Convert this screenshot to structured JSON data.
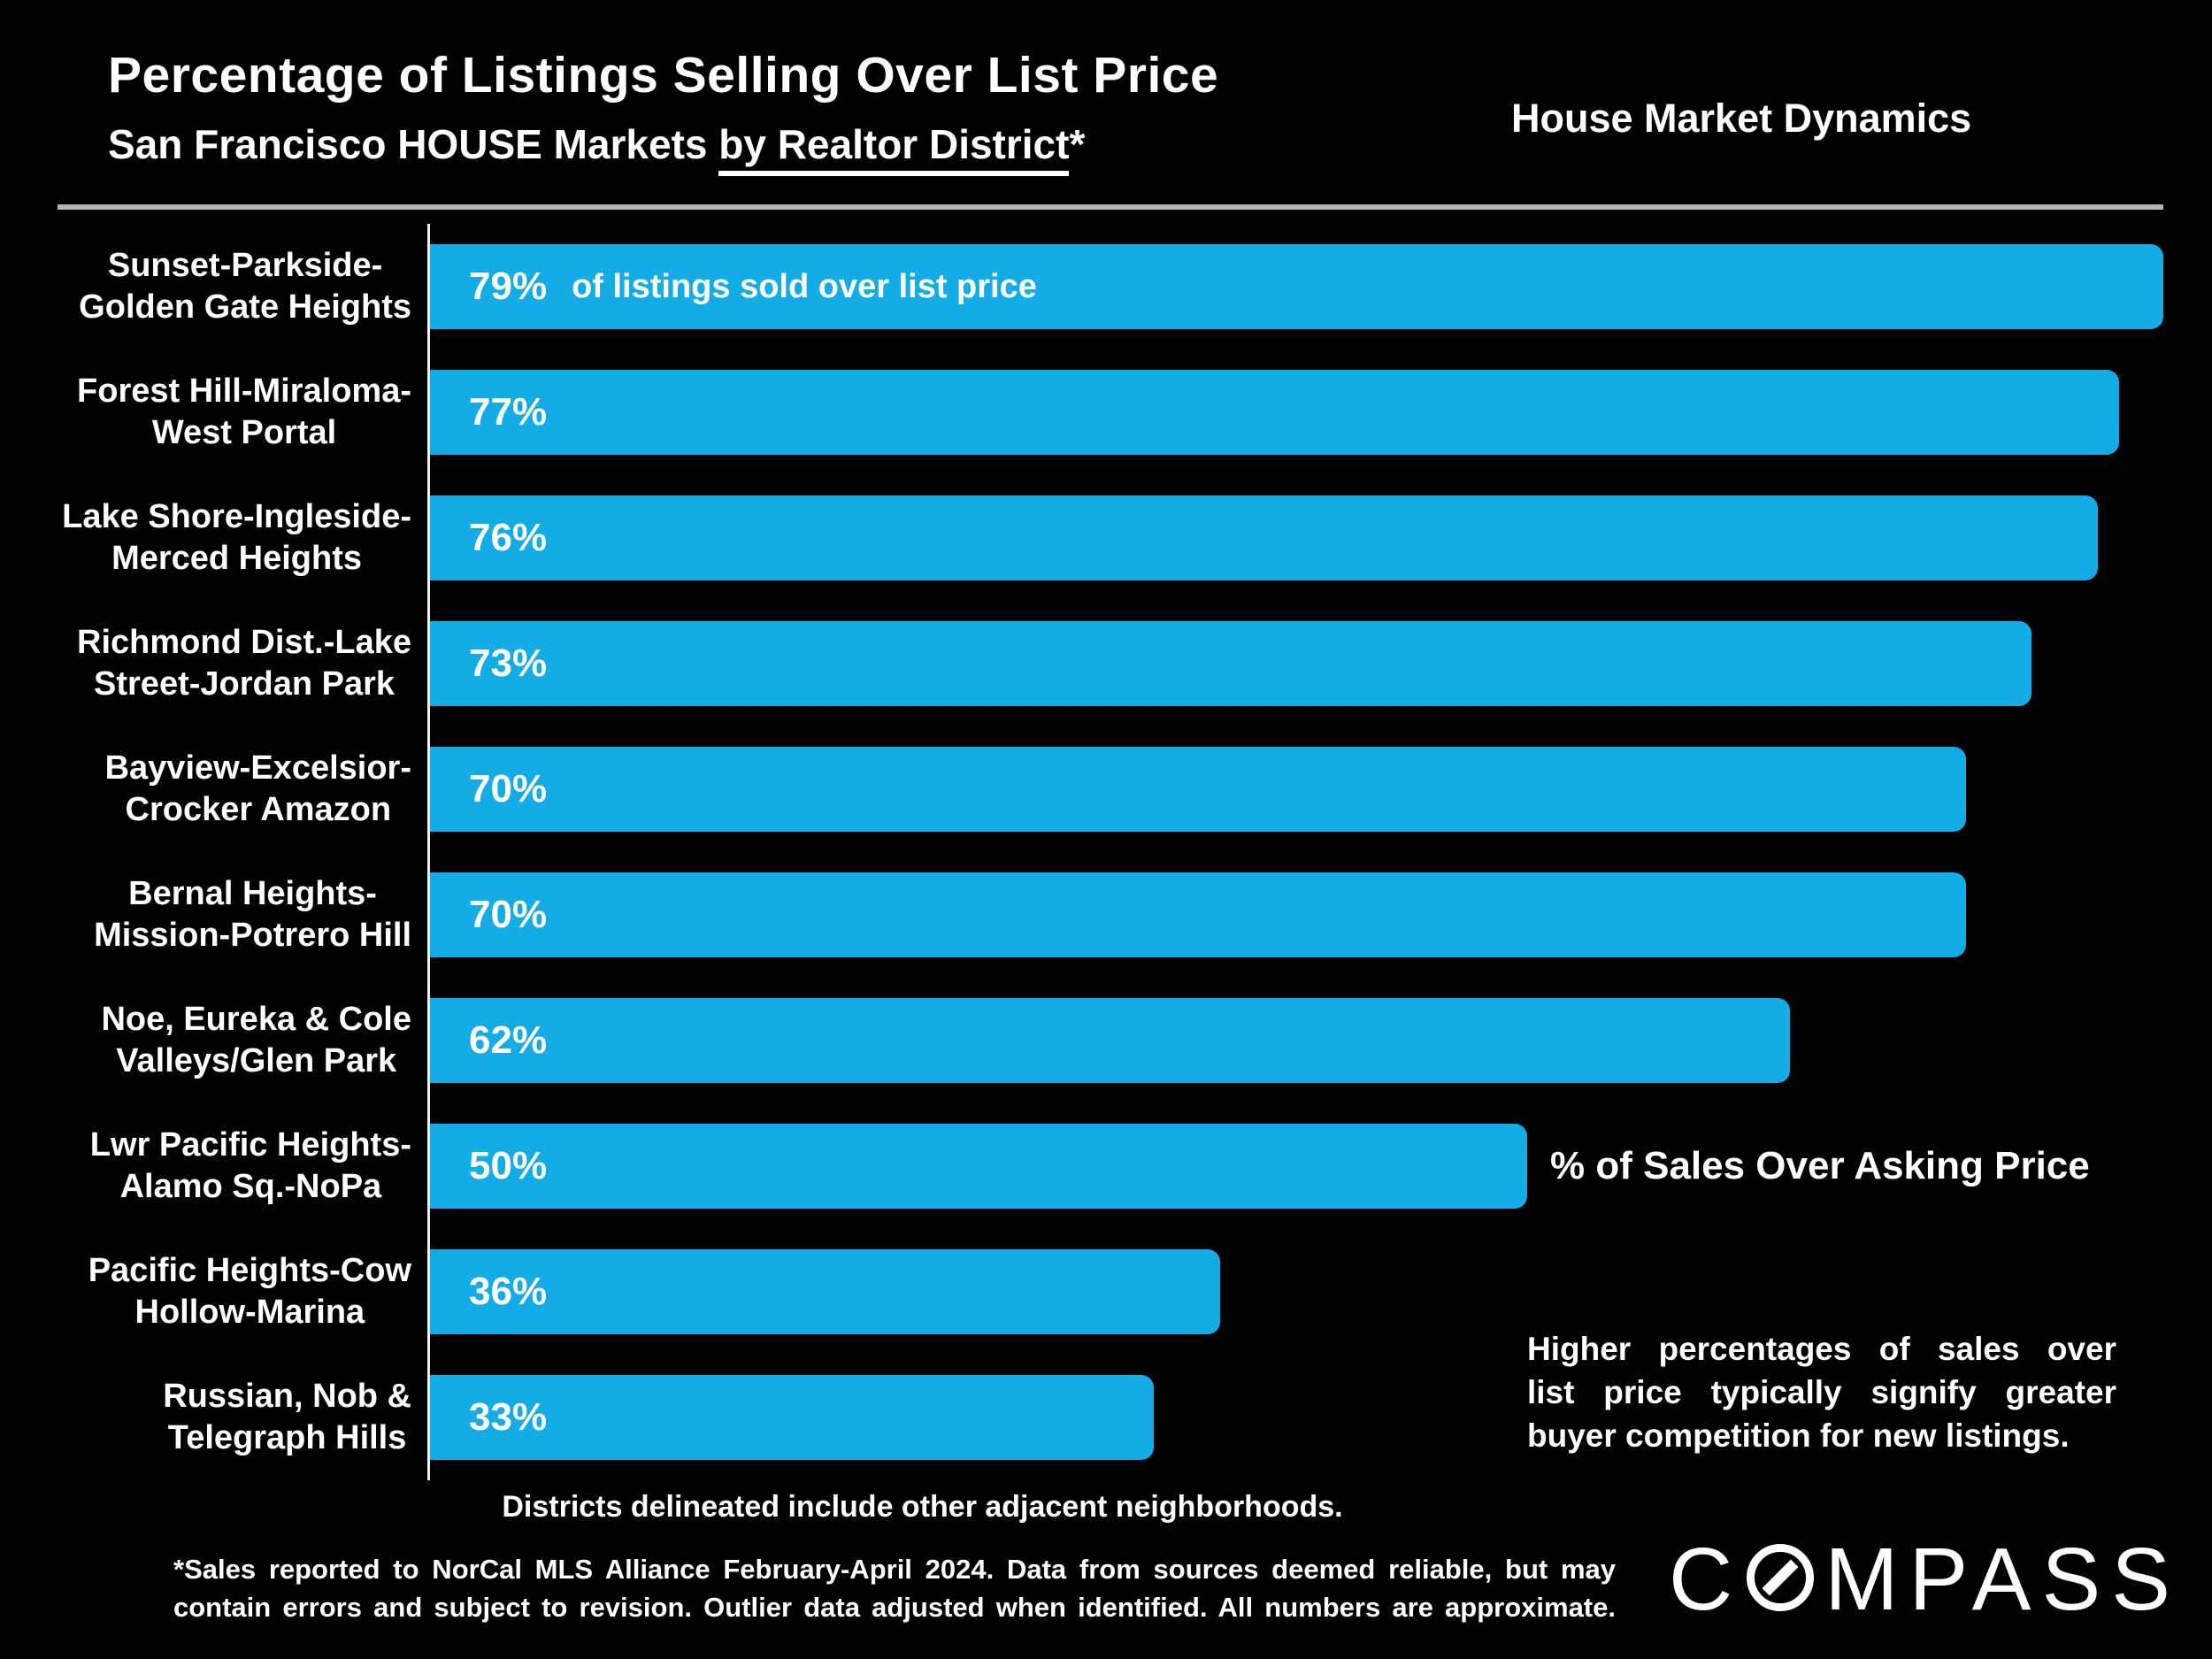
{
  "header": {
    "title": "Percentage of Listings Selling Over List Price",
    "subtitle_prefix": "San Francisco HOUSE Markets ",
    "subtitle_underlined": "by Realtor District",
    "subtitle_suffix": "*",
    "right_heading": "House Market Dynamics"
  },
  "chart_data": {
    "type": "bar",
    "orientation": "horizontal",
    "title": "Percentage of Listings Selling Over List Price",
    "xlabel": "% of listings sold over list price",
    "xlim": [
      0,
      80
    ],
    "grid": false,
    "bar_color": "#14ACE6",
    "value_suffix": "%",
    "categories": [
      "Sunset-Parkside-Golden Gate Heights",
      "Forest Hill-Miraloma-West Portal",
      "Lake Shore-Ingleside-Merced Heights",
      "Richmond Dist.-Lake Street-Jordan Park",
      "Bayview-Excelsior-Crocker Amazon",
      "Bernal Heights-Mission-Potrero Hill",
      "Noe, Eureka & Cole Valleys/Glen Park",
      "Lwr Pacific Heights-Alamo Sq.-NoPa",
      "Pacific Heights-Cow Hollow-Marina",
      "Russian, Nob & Telegraph Hills"
    ],
    "values": [
      79,
      77,
      76,
      73,
      70,
      70,
      62,
      50,
      36,
      33
    ],
    "rows": [
      {
        "label_lines": [
          "Sunset-Parkside-",
          "Golden Gate Heights"
        ],
        "value": 79,
        "note": "of listings sold over list price"
      },
      {
        "label_lines": [
          "Forest Hill-Miraloma-",
          "West Portal"
        ],
        "value": 77
      },
      {
        "label_lines": [
          "Lake Shore-Ingleside-",
          "Merced Heights"
        ],
        "value": 76
      },
      {
        "label_lines": [
          "Richmond Dist.-Lake",
          "Street-Jordan Park"
        ],
        "value": 73
      },
      {
        "label_lines": [
          "Bayview-Excelsior-",
          "Crocker Amazon"
        ],
        "value": 70
      },
      {
        "label_lines": [
          "Bernal Heights-",
          "Mission-Potrero Hill"
        ],
        "value": 70
      },
      {
        "label_lines": [
          "Noe, Eureka & Cole",
          "Valleys/Glen Park"
        ],
        "value": 62
      },
      {
        "label_lines": [
          "Lwr Pacific Heights-",
          "Alamo Sq.-NoPa"
        ],
        "value": 50
      },
      {
        "label_lines": [
          "Pacific Heights-Cow",
          "Hollow-Marina"
        ],
        "value": 36
      },
      {
        "label_lines": [
          "Russian, Nob &",
          "Telegraph Hills"
        ],
        "value": 33
      }
    ]
  },
  "annotation": {
    "heading": "% of Sales Over Asking Price",
    "body_lines": [
      "Higher percentages of sales over",
      "list price typically signify greater",
      "buyer competition for new listings."
    ]
  },
  "footer": {
    "districts_note": "Districts delineated include other adjacent neighborhoods.",
    "footnote_lines": [
      "*Sales reported to NorCal MLS Alliance February-April 2024. Data from sources deemed reliable, but may",
      "contain errors and subject to revision. Outlier data adjusted when identified. All numbers are approximate."
    ],
    "logo": {
      "text": "COMPASS",
      "text_before_o": "C",
      "text_after_o": "MPASS"
    }
  }
}
